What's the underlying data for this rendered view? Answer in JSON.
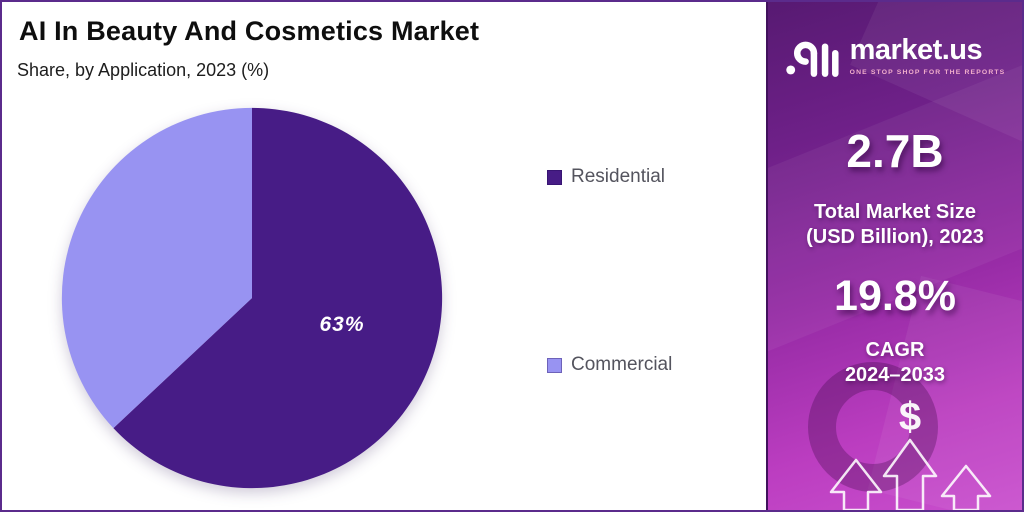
{
  "header": {
    "title": "AI In Beauty And Cosmetics Market",
    "subtitle": "Share, by Application, 2023 (%)"
  },
  "chart_data": {
    "type": "pie",
    "title": "AI In Beauty And Cosmetics Market",
    "subtitle": "Share, by Application, 2023 (%)",
    "categories": [
      "Residential",
      "Commercial"
    ],
    "values": [
      63,
      37
    ],
    "unit": "%",
    "colors": [
      "#471c86",
      "#9893f2"
    ],
    "slice_labels": [
      "63%",
      ""
    ],
    "start_angle_deg": -90,
    "direction": "clockwise",
    "legend_position": "right",
    "legend_text_color": "#54545e"
  },
  "panel": {
    "brand": {
      "name": "market.us",
      "tagline": "ONE STOP SHOP FOR THE REPORTS"
    },
    "stats": {
      "market_size": {
        "value": "2.7B",
        "label_line1": "Total Market Size",
        "label_line2": "(USD Billion), 2023"
      },
      "cagr": {
        "value": "19.8%",
        "label_line1": "CAGR",
        "label_line2": "2024–2033"
      }
    },
    "dollar_symbol": "$",
    "colors": {
      "gradient_top": "#571a72",
      "gradient_bottom": "#c94fcd",
      "frame_border": "#5b2b8c"
    }
  }
}
